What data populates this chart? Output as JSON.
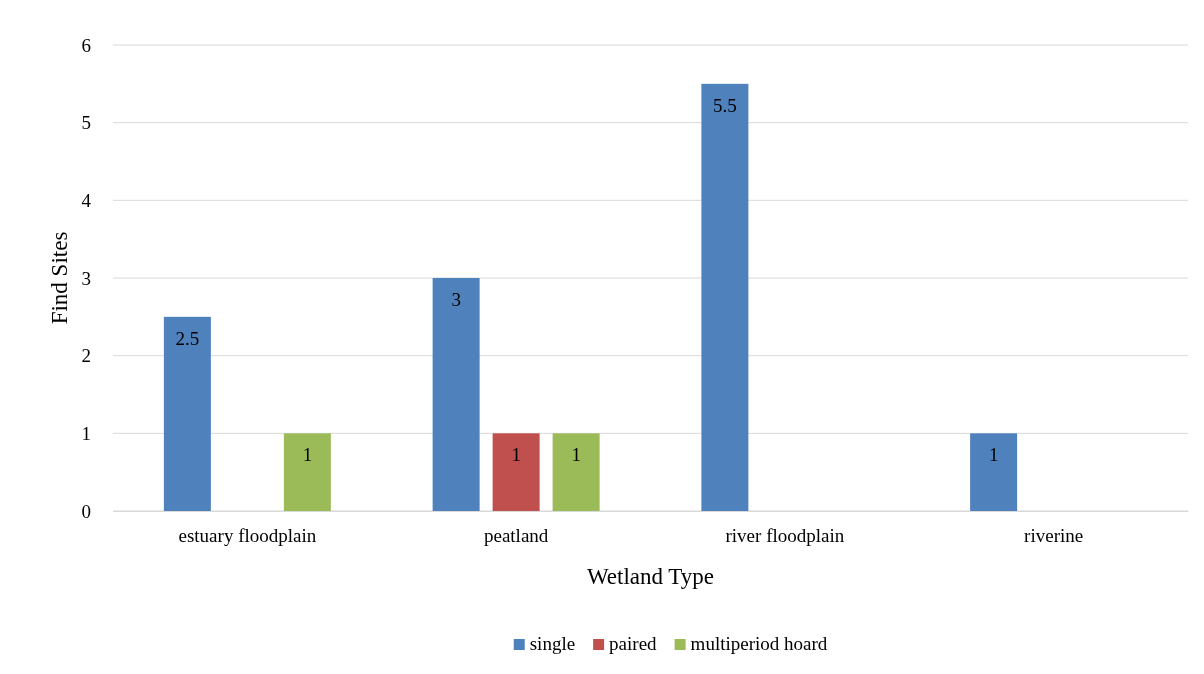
{
  "chart_data": {
    "type": "bar",
    "xlabel": "Wetland Type",
    "ylabel": "Find Sites",
    "categories": [
      "estuary floodplain",
      "peatland",
      "river floodplain",
      "riverine"
    ],
    "series": [
      {
        "name": "single",
        "color": "#4f81bd",
        "values": [
          2.5,
          3,
          5.5,
          1
        ]
      },
      {
        "name": "paired",
        "color": "#c0504d",
        "values": [
          null,
          1,
          null,
          null
        ]
      },
      {
        "name": "multiperiod hoard",
        "color": "#9bbb59",
        "values": [
          1,
          1,
          null,
          null
        ]
      }
    ],
    "ylim": [
      0,
      6
    ],
    "yticks": [
      0,
      1,
      2,
      3,
      4,
      5,
      6
    ],
    "grid": "y",
    "legend": "bottom",
    "data_labels": true
  }
}
